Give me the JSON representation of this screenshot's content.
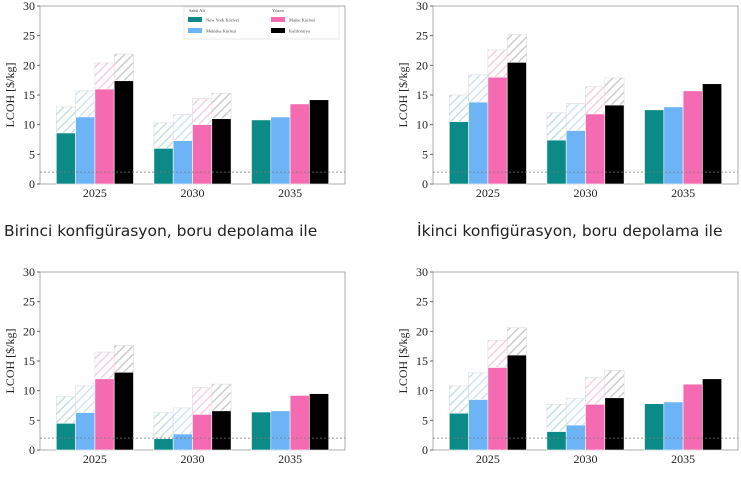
{
  "chart_data": [
    {
      "type": "bar",
      "caption": "Birinci konfigürasyon, boru depolama ile",
      "ylabel": "LCOH [$/kg]",
      "ylim": [
        0,
        30
      ],
      "yticks": [
        "0",
        "5",
        "10",
        "15",
        "20",
        "25",
        "30"
      ],
      "categories": [
        "2025",
        "2030",
        "2035"
      ],
      "reference_line": 2,
      "legend": {
        "placement": "top-right",
        "group_titles": [
          "Sabit Alt",
          "Yüzen"
        ],
        "entries": [
          "New York Körfezi",
          "Meksika Körfezi",
          "Maine Körfezi",
          "Kaliforniya"
        ]
      },
      "series": [
        {
          "name": "New York Körfezi",
          "values": [
            8.6,
            6.0,
            10.8
          ],
          "upper": [
            13.0,
            10.3,
            null
          ]
        },
        {
          "name": "Meksika Körfezi",
          "values": [
            11.3,
            7.3,
            11.3
          ],
          "upper": [
            15.7,
            11.7,
            null
          ]
        },
        {
          "name": "Maine Körfezi",
          "values": [
            16.0,
            10.0,
            13.5
          ],
          "upper": [
            20.4,
            14.4,
            null
          ]
        },
        {
          "name": "Kaliforniya",
          "values": [
            17.4,
            11.0,
            14.2
          ],
          "upper": [
            21.9,
            15.3,
            null
          ]
        }
      ]
    },
    {
      "type": "bar",
      "caption": "İkinci konfigürasyon, boru depolama ile",
      "ylabel": "LCOH [$/kg]",
      "ylim": [
        0,
        30
      ],
      "yticks": [
        "0",
        "5",
        "10",
        "15",
        "20",
        "25",
        "30"
      ],
      "categories": [
        "2025",
        "2030",
        "2035"
      ],
      "reference_line": 2,
      "series": [
        {
          "name": "New York Körfezi",
          "values": [
            10.5,
            7.4,
            12.5
          ],
          "upper": [
            15.0,
            12.0,
            null
          ]
        },
        {
          "name": "Meksika Körfezi",
          "values": [
            13.8,
            9.0,
            13.0
          ],
          "upper": [
            18.4,
            13.6,
            null
          ]
        },
        {
          "name": "Maine Körfezi",
          "values": [
            18.0,
            11.8,
            15.7
          ],
          "upper": [
            22.6,
            16.4,
            null
          ]
        },
        {
          "name": "Kaliforniya",
          "values": [
            20.5,
            13.3,
            16.9
          ],
          "upper": [
            25.2,
            17.9,
            null
          ]
        }
      ]
    },
    {
      "type": "bar",
      "ylabel": "LCOH [$/kg]",
      "ylim": [
        0,
        30
      ],
      "yticks": [
        "0",
        "5",
        "10",
        "15",
        "20",
        "25",
        "30"
      ],
      "categories": [
        "2025",
        "2030",
        "2035"
      ],
      "reference_line": 2,
      "series": [
        {
          "name": "New York Körfezi",
          "values": [
            4.5,
            1.9,
            6.4
          ],
          "upper": [
            9.0,
            6.3,
            null
          ]
        },
        {
          "name": "Meksika Körfezi",
          "values": [
            6.3,
            2.7,
            6.6
          ],
          "upper": [
            10.8,
            7.1,
            null
          ]
        },
        {
          "name": "Maine Körfezi",
          "values": [
            12.0,
            6.0,
            9.2
          ],
          "upper": [
            16.5,
            10.5,
            null
          ]
        },
        {
          "name": "Kaliforniya",
          "values": [
            13.1,
            6.6,
            9.5
          ],
          "upper": [
            17.6,
            11.1,
            null
          ]
        }
      ]
    },
    {
      "type": "bar",
      "ylabel": "LCOH [$/kg]",
      "ylim": [
        0,
        30
      ],
      "yticks": [
        "0",
        "5",
        "10",
        "15",
        "20",
        "25",
        "30"
      ],
      "categories": [
        "2025",
        "2030",
        "2035"
      ],
      "reference_line": 2,
      "series": [
        {
          "name": "New York Körfezi",
          "values": [
            6.2,
            3.1,
            7.8
          ],
          "upper": [
            10.8,
            7.7,
            null
          ]
        },
        {
          "name": "Meksika Körfezi",
          "values": [
            8.5,
            4.2,
            8.1
          ],
          "upper": [
            13.0,
            8.7,
            null
          ]
        },
        {
          "name": "Maine Körfezi",
          "values": [
            13.9,
            7.7,
            11.1
          ],
          "upper": [
            18.5,
            12.2,
            null
          ]
        },
        {
          "name": "Kaliforniya",
          "values": [
            16.0,
            8.8,
            12.0
          ],
          "upper": [
            20.6,
            13.4,
            null
          ]
        }
      ]
    }
  ],
  "colors": [
    "#0b8a87",
    "#6cb4f5",
    "#f46bb2",
    "#000000"
  ],
  "hatch_colors": [
    "#bcdcd9",
    "#c9def5",
    "#f6c6dc",
    "#c4c4c4"
  ]
}
